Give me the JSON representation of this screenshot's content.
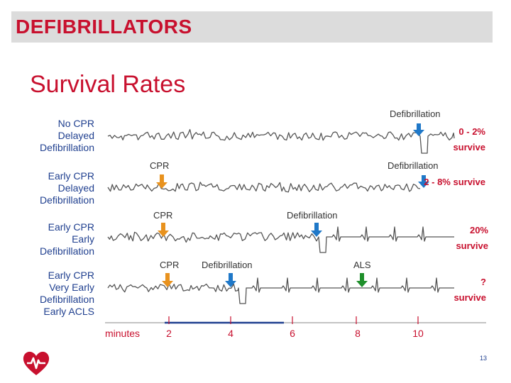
{
  "header": {
    "title": "DEFIBRILLATORS"
  },
  "section_title": "Survival Rates",
  "rows": [
    {
      "label_lines": [
        "No CPR",
        "Delayed",
        "Defibrillation"
      ],
      "outcome_lines": [
        "0 - 2%",
        "survive"
      ]
    },
    {
      "label_lines": [
        "Early CPR",
        "Delayed",
        "Defibrillation"
      ],
      "outcome_lines": [
        "2 - 8% survive"
      ]
    },
    {
      "label_lines": [
        "Early CPR",
        "Early",
        "Defibrillation"
      ],
      "outcome_lines": [
        "20%",
        "survive"
      ]
    },
    {
      "label_lines": [
        "Early CPR",
        "Very Early",
        "Defibrillation",
        "Early ACLS"
      ],
      "outcome_lines": [
        "?",
        "survive"
      ]
    }
  ],
  "annotations": {
    "defibrillation": "Defibrillation",
    "cpr": "CPR",
    "als": "ALS"
  },
  "axis": {
    "unit_label": "minutes",
    "ticks": [
      "2",
      "4",
      "6",
      "8",
      "10"
    ]
  },
  "colors": {
    "accent_red": "#c8102e",
    "label_blue": "#1f3f8f",
    "defib_arrow": "#1f78c8",
    "cpr_arrow": "#e8921e",
    "als_arrow": "#1e8f2a",
    "trace": "#555555"
  },
  "logo_icon": "heart-defibrillator-logo-icon",
  "page_number": "13"
}
